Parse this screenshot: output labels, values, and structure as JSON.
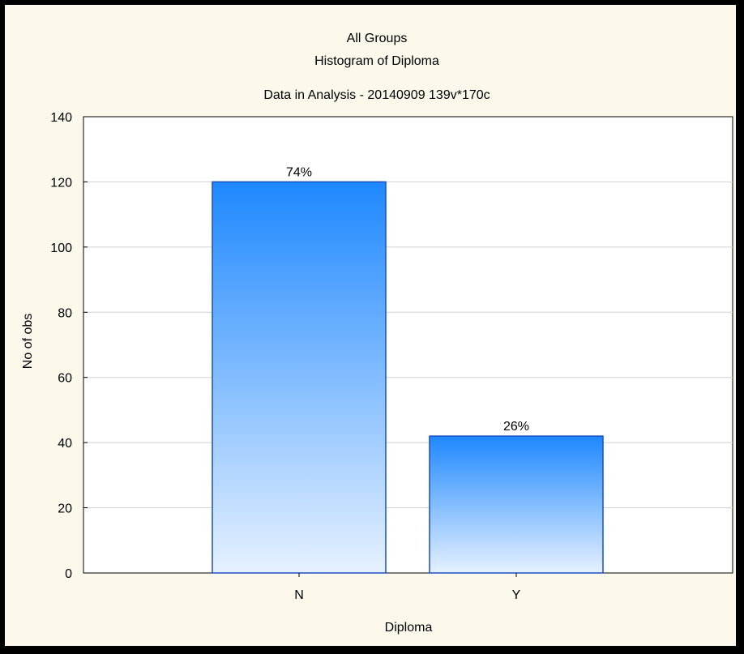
{
  "chart_data": {
    "type": "bar",
    "title": "All Groups",
    "subtitle": [
      "Histogram of Diploma",
      "Data in Analysis - 20140909 139v*170c"
    ],
    "xlabel": "Diploma",
    "ylabel": "No of obs",
    "categories": [
      "N",
      "Y"
    ],
    "values": [
      120,
      42
    ],
    "data_labels": [
      "74%",
      "26%"
    ],
    "ylim": [
      0,
      140
    ],
    "yticks": [
      0,
      20,
      40,
      60,
      80,
      100,
      120,
      140
    ],
    "grid": true,
    "colors": {
      "bar_top": "#1e88ff",
      "bar_bottom": "#e6f1ff",
      "bar_edge": "#1a4fc4",
      "background": "#fdf8ec",
      "plot_background": "#ffffff",
      "frame": "#000000",
      "gridline": "#d0d0d0"
    }
  }
}
